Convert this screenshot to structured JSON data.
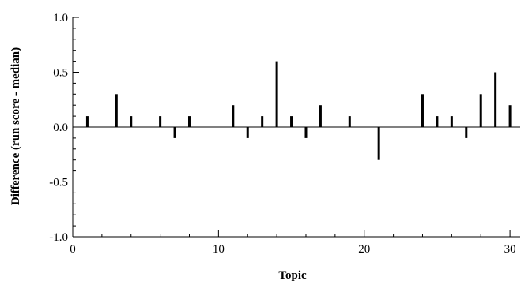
{
  "chart_data": {
    "type": "bar",
    "xlabel": "Topic",
    "ylabel": "Difference (run score - median)",
    "xlim": [
      0,
      30.7
    ],
    "ylim": [
      -1.0,
      1.0
    ],
    "x_ticks": [
      "0",
      "10",
      "20",
      "30"
    ],
    "x_tick_values": [
      0,
      10,
      20,
      30
    ],
    "y_ticks": [
      "-1.0",
      "-0.5",
      "0.0",
      "0.5",
      "1.0"
    ],
    "y_tick_values": [
      -1.0,
      -0.5,
      0.0,
      0.5,
      1.0
    ],
    "grid": false,
    "baseline": 0,
    "x": [
      1,
      3,
      4,
      6,
      7,
      8,
      11,
      12,
      13,
      14,
      15,
      16,
      17,
      19,
      21,
      24,
      25,
      26,
      27,
      28,
      29,
      30
    ],
    "values": [
      0.1,
      0.3,
      0.1,
      0.1,
      -0.1,
      0.1,
      0.2,
      -0.1,
      0.1,
      0.6,
      0.1,
      -0.1,
      0.2,
      0.1,
      -0.3,
      0.3,
      0.1,
      0.1,
      -0.1,
      0.3,
      0.5,
      0.2
    ],
    "colors": {
      "bar": "#000000",
      "axis": "#000000",
      "baseline": "#000000"
    }
  }
}
